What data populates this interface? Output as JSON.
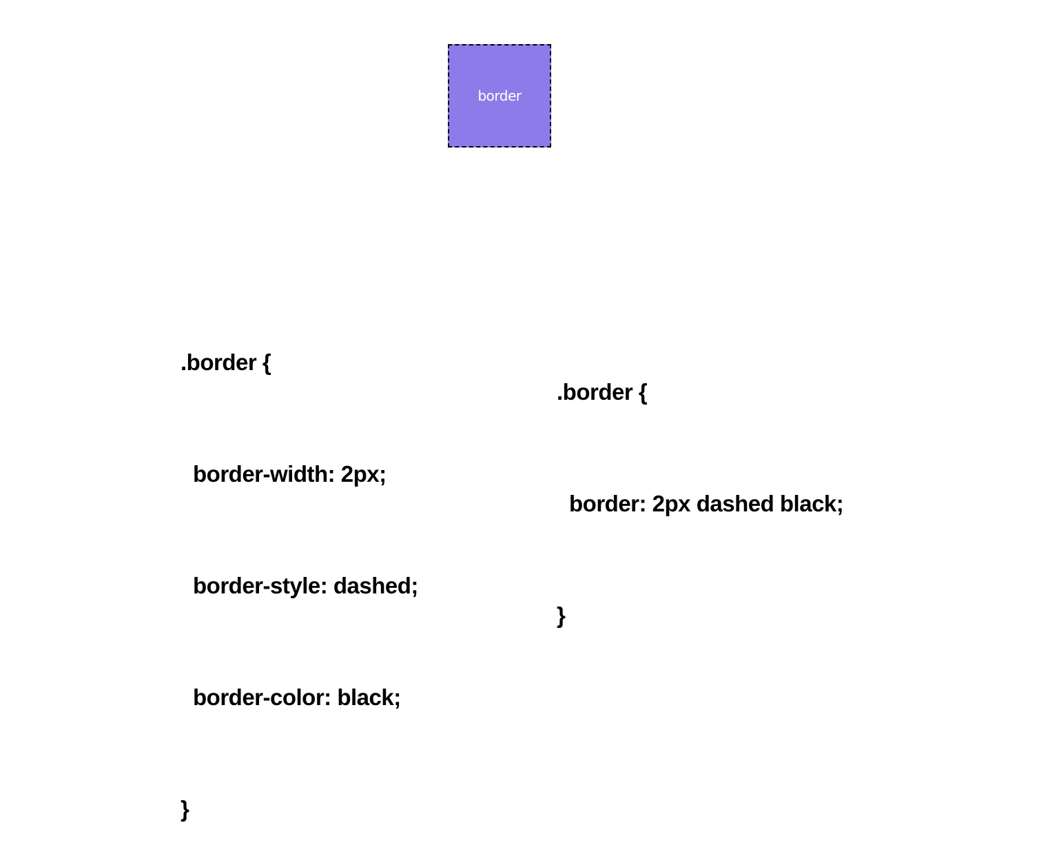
{
  "demo_box": {
    "label": "border",
    "fill_color": "#8c7be9",
    "border_color": "#000000"
  },
  "code_longhand": {
    "lines": [
      ".border {",
      "border-width: 2px;",
      "border-style: dashed;",
      "border-color: black;",
      "}"
    ]
  },
  "code_shorthand": {
    "lines": [
      ".border {",
      "border: 2px dashed black;",
      "}"
    ]
  }
}
